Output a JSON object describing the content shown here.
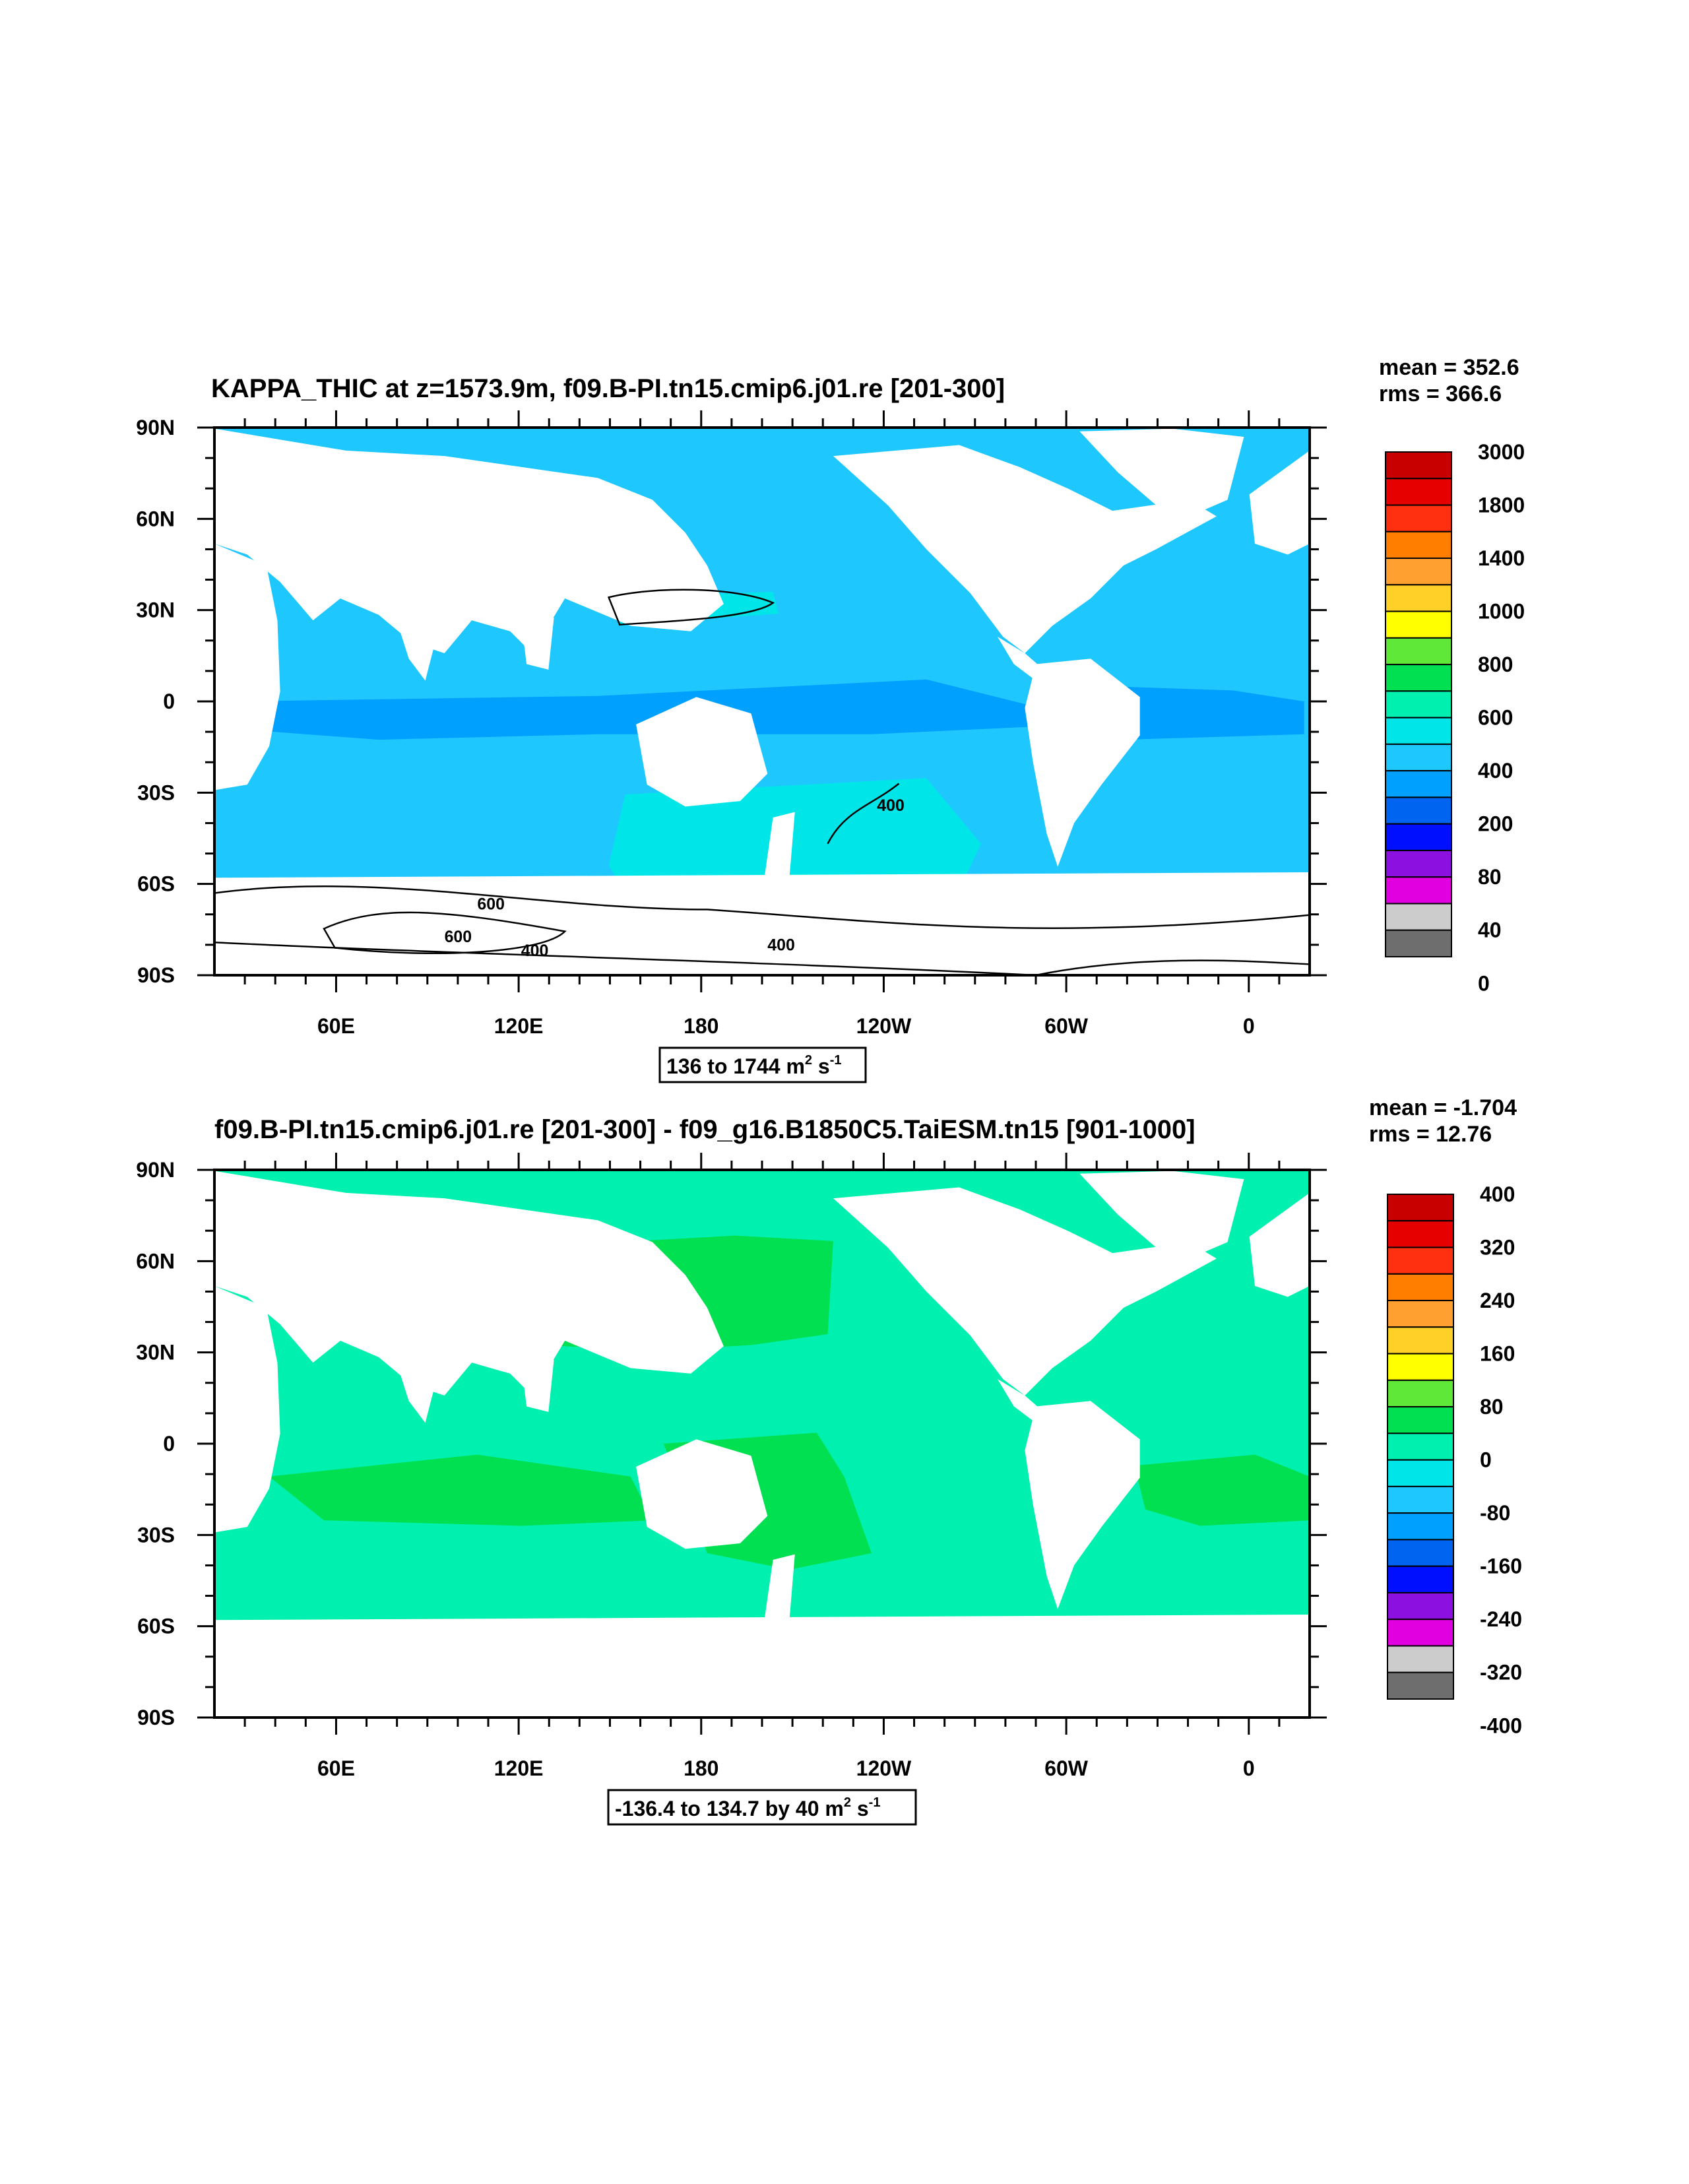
{
  "chart_data": [
    {
      "type": "heatmap",
      "title": "KAPPA_THIC at z=1573.9m, f09.B-PI.tn15.cmip6.j01.re [201-300]",
      "stats": {
        "mean": "mean = 352.6",
        "rms": "rms = 366.6"
      },
      "range_label": {
        "main": "136 to 1744 m",
        "sup1": "2",
        "mid": " s",
        "sup2": "-1"
      },
      "x_ticks": [
        "60E",
        "120E",
        "180",
        "120W",
        "60W",
        "0"
      ],
      "y_ticks": [
        "90N",
        "60N",
        "30N",
        "0",
        "30S",
        "60S",
        "90S"
      ],
      "xlim": [
        20,
        380
      ],
      "ylim": [
        -90,
        90
      ],
      "contour_labels": [
        "600",
        "600",
        "400",
        "400",
        "400"
      ],
      "colorbar": {
        "labels": [
          "3000",
          "1800",
          "1400",
          "1000",
          "800",
          "600",
          "400",
          "200",
          "80",
          "40",
          "0"
        ],
        "colors": [
          "#c80000",
          "#e60000",
          "#ff3010",
          "#ff7e00",
          "#ffa030",
          "#ffd028",
          "#ffff00",
          "#60e838",
          "#00e050",
          "#00f0b0",
          "#00e6e8",
          "#1ec8ff",
          "#00a0ff",
          "#0064f0",
          "#0010ff",
          "#8c10e0",
          "#e000e0",
          "#cccccc",
          "#6e6e6e"
        ]
      }
    },
    {
      "type": "heatmap",
      "title": "f09.B-PI.tn15.cmip6.j01.re [201-300] - f09_g16.B1850C5.TaiESM.tn15 [901-1000]",
      "stats": {
        "mean": "mean = -1.704",
        "rms": "rms = 12.76"
      },
      "range_label": {
        "main": "-136.4 to 134.7 by 40 m",
        "sup1": "2",
        "mid": " s",
        "sup2": "-1"
      },
      "x_ticks": [
        "60E",
        "120E",
        "180",
        "120W",
        "60W",
        "0"
      ],
      "y_ticks": [
        "90N",
        "60N",
        "30N",
        "0",
        "30S",
        "60S",
        "90S"
      ],
      "xlim": [
        20,
        380
      ],
      "ylim": [
        -90,
        90
      ],
      "colorbar": {
        "labels": [
          "400",
          "320",
          "240",
          "160",
          "80",
          "0",
          "-80",
          "-160",
          "-240",
          "-320",
          "-400"
        ],
        "colors": [
          "#c80000",
          "#e60000",
          "#ff3010",
          "#ff7e00",
          "#ffa030",
          "#ffd028",
          "#ffff00",
          "#60e838",
          "#00e050",
          "#00f0b0",
          "#00e6e8",
          "#1ec8ff",
          "#00a0ff",
          "#0064f0",
          "#0010ff",
          "#8c10e0",
          "#e000e0",
          "#cccccc",
          "#6e6e6e"
        ]
      }
    }
  ]
}
